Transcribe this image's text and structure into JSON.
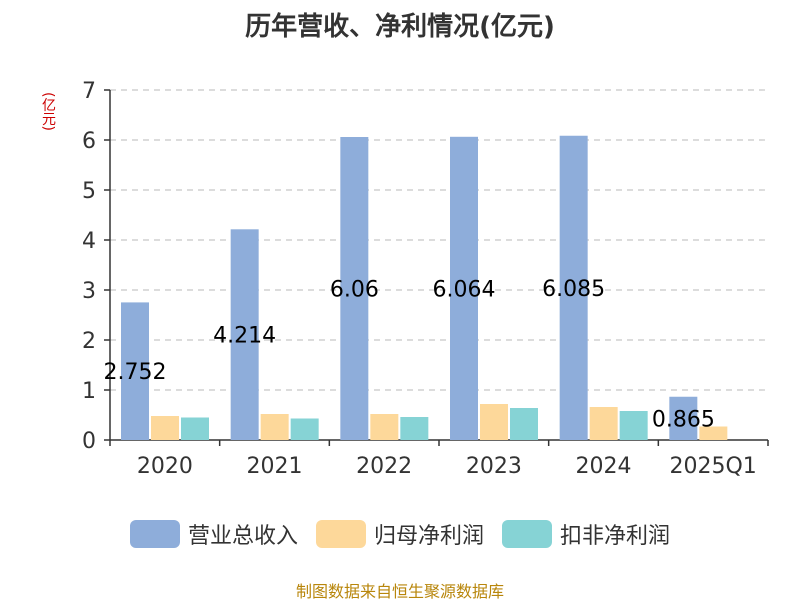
{
  "title": "历年营收、净利情况(亿元)",
  "unit_label": "(亿元)",
  "source": "制图数据来自恒生聚源数据库",
  "chart_data": {
    "type": "bar",
    "categories": [
      "2020",
      "2021",
      "2022",
      "2023",
      "2024",
      "2025Q1"
    ],
    "ylim": [
      0,
      7
    ],
    "yticks": [
      0,
      1,
      2,
      3,
      4,
      5,
      6,
      7
    ],
    "grid": true,
    "legend_position": "bottom",
    "series": [
      {
        "name": "营业总收入",
        "color": "#8eadda",
        "values": [
          2.752,
          4.214,
          6.06,
          6.064,
          6.085,
          0.865
        ]
      },
      {
        "name": "归母净利润",
        "color": "#fdd89a",
        "values": [
          0.48,
          0.52,
          0.52,
          0.72,
          0.66,
          0.27
        ]
      },
      {
        "name": "扣非净利润",
        "color": "#86d3d5",
        "values": [
          0.45,
          0.43,
          0.46,
          0.64,
          0.58,
          null
        ]
      }
    ],
    "data_labels": [
      {
        "category": "2020",
        "series": "营业总收入",
        "text": "2.752"
      },
      {
        "category": "2021",
        "series": "营业总收入",
        "text": "4.214"
      },
      {
        "category": "2022",
        "series": "营业总收入",
        "text": "6.06"
      },
      {
        "category": "2023",
        "series": "营业总收入",
        "text": "6.064"
      },
      {
        "category": "2024",
        "series": "营业总收入",
        "text": "6.085"
      },
      {
        "category": "2025Q1",
        "series": "营业总收入",
        "text": "0.865"
      }
    ]
  }
}
